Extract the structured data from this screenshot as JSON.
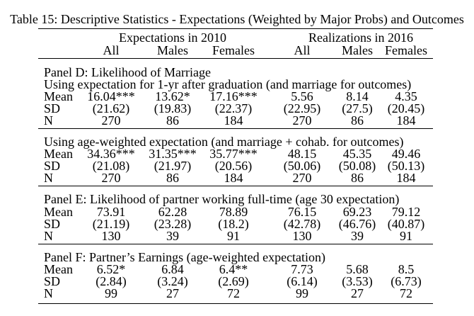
{
  "caption": "Table 15: Descriptive Statistics - Expectations (Weighted by Major Probs) and Outcomes",
  "groups": [
    "Expectations in 2010",
    "Realizations in 2016"
  ],
  "columns": [
    "All",
    "Males",
    "Females",
    "All",
    "Males",
    "Females"
  ],
  "sections": [
    {
      "titles": [
        "Panel D: Likelihood of Marriage",
        "Using expectation for 1-yr after graduation (and marriage for outcomes)"
      ],
      "rows": [
        {
          "label": "Mean",
          "values": [
            "16.04***",
            "13.62*",
            "17.16***",
            "5.56",
            "8.14",
            "4.35"
          ]
        },
        {
          "label": "SD",
          "values": [
            "(21.62)",
            "(19.83)",
            "(22.37)",
            "(22.95)",
            "(27.5)",
            "(20.45)"
          ]
        },
        {
          "label": "N",
          "values": [
            "270",
            "86",
            "184",
            "270",
            "86",
            "184"
          ]
        }
      ]
    },
    {
      "titles": [
        "Using age-weighted expectation (and marriage + cohab. for outcomes)"
      ],
      "rows": [
        {
          "label": "Mean",
          "values": [
            "34.36***",
            "31.35***",
            "35.77***",
            "48.15",
            "45.35",
            "49.46"
          ]
        },
        {
          "label": "SD",
          "values": [
            "(21.08)",
            "(21.97)",
            "(20.56)",
            "(50.06)",
            "(50.08)",
            "(50.13)"
          ]
        },
        {
          "label": "N",
          "values": [
            "270",
            "86",
            "184",
            "270",
            "86",
            "184"
          ]
        }
      ]
    },
    {
      "titles": [
        "Panel E: Likelihood of partner working full-time (age 30 expectation)"
      ],
      "rows": [
        {
          "label": "Mean",
          "values": [
            "73.91",
            "62.28",
            "78.89",
            "76.15",
            "69.23",
            "79.12"
          ]
        },
        {
          "label": "SD",
          "values": [
            "(21.19)",
            "(23.28)",
            "(18.2)",
            "(42.78)",
            "(46.76)",
            "(40.87)"
          ]
        },
        {
          "label": "N",
          "values": [
            "130",
            "39",
            "91",
            "130",
            "39",
            "91"
          ]
        }
      ]
    },
    {
      "titles": [
        "Panel F: Partner’s Earnings (age-weighted expectation)"
      ],
      "rows": [
        {
          "label": "Mean",
          "values": [
            "6.52*",
            "6.84",
            "6.4**",
            "7.73",
            "5.68",
            "8.5"
          ]
        },
        {
          "label": "SD",
          "values": [
            "(2.84)",
            "(3.24)",
            "(2.69)",
            "(6.14)",
            "(3.53)",
            "(6.73)"
          ]
        },
        {
          "label": "N",
          "values": [
            "99",
            "27",
            "72",
            "99",
            "27",
            "72"
          ]
        }
      ]
    }
  ]
}
